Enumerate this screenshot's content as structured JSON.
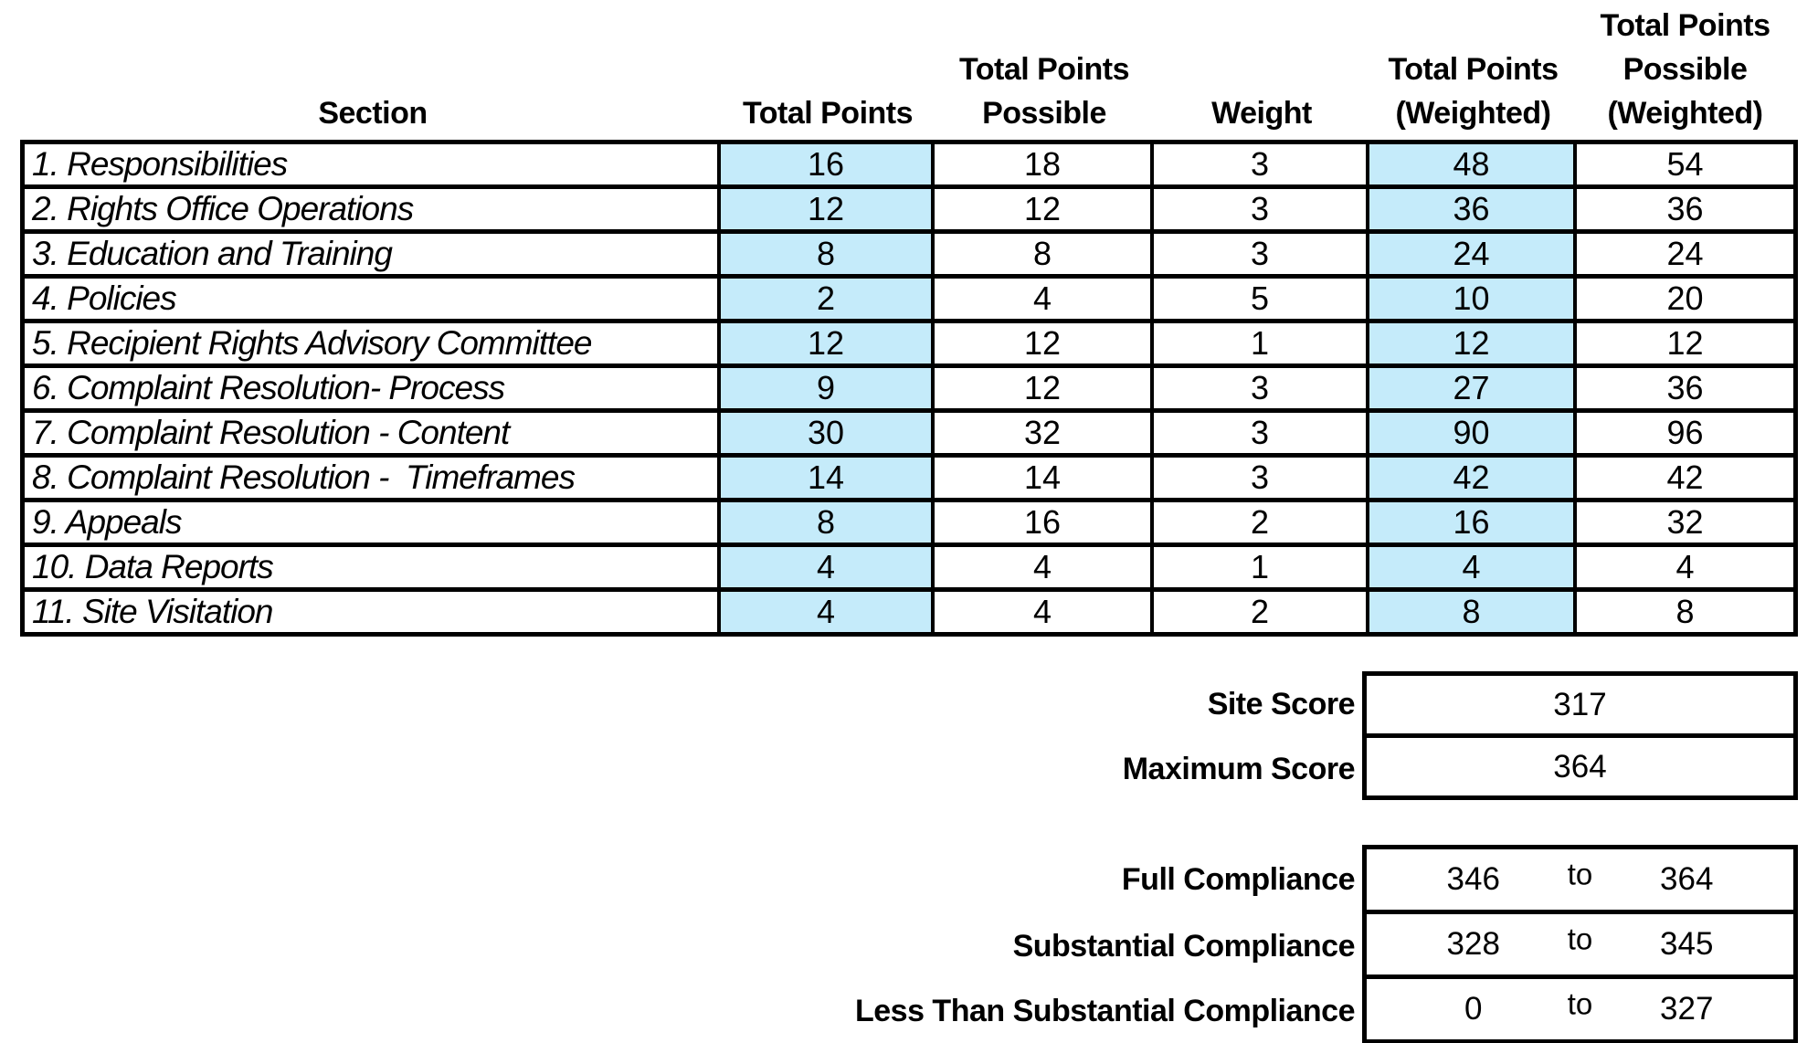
{
  "colors": {
    "highlight": "#C5EBFA",
    "border": "#000000",
    "background": "#FFFFFF",
    "text": "#000000"
  },
  "table": {
    "headers": [
      {
        "label": "Section"
      },
      {
        "label": "Total Points"
      },
      {
        "label": "Total Points\nPossible"
      },
      {
        "label": "Weight"
      },
      {
        "label": "Total Points\n(Weighted)"
      },
      {
        "label": "Total Points\nPossible\n(Weighted)"
      }
    ],
    "rows": [
      {
        "section": "1. Responsibilities",
        "total_points": "16",
        "possible": "18",
        "weight": "3",
        "weighted": "48",
        "weighted_possible": "54"
      },
      {
        "section": "2. Rights Office Operations",
        "total_points": "12",
        "possible": "12",
        "weight": "3",
        "weighted": "36",
        "weighted_possible": "36"
      },
      {
        "section": "3. Education and Training",
        "total_points": "8",
        "possible": "8",
        "weight": "3",
        "weighted": "24",
        "weighted_possible": "24"
      },
      {
        "section": "4. Policies",
        "total_points": "2",
        "possible": "4",
        "weight": "5",
        "weighted": "10",
        "weighted_possible": "20"
      },
      {
        "section": "5. Recipient Rights Advisory Committee",
        "total_points": "12",
        "possible": "12",
        "weight": "1",
        "weighted": "12",
        "weighted_possible": "12"
      },
      {
        "section": "6. Complaint Resolution- Process",
        "total_points": "9",
        "possible": "12",
        "weight": "3",
        "weighted": "27",
        "weighted_possible": "36"
      },
      {
        "section": "7. Complaint Resolution - Content",
        "total_points": "30",
        "possible": "32",
        "weight": "3",
        "weighted": "90",
        "weighted_possible": "96"
      },
      {
        "section": "8. Complaint Resolution -  Timeframes",
        "total_points": "14",
        "possible": "14",
        "weight": "3",
        "weighted": "42",
        "weighted_possible": "42"
      },
      {
        "section": "9. Appeals",
        "total_points": "8",
        "possible": "16",
        "weight": "2",
        "weighted": "16",
        "weighted_possible": "32"
      },
      {
        "section": "10. Data Reports",
        "total_points": "4",
        "possible": "4",
        "weight": "1",
        "weighted": "4",
        "weighted_possible": "4"
      },
      {
        "section": "11. Site Visitation",
        "total_points": "4",
        "possible": "4",
        "weight": "2",
        "weighted": "8",
        "weighted_possible": "8"
      }
    ]
  },
  "summary": {
    "rows": [
      {
        "label": "Site Score",
        "value": "317"
      },
      {
        "label": "Maximum Score",
        "value": "364"
      }
    ]
  },
  "compliance": {
    "rows": [
      {
        "label": "Full Compliance",
        "from": "346",
        "word": "to",
        "to": "364"
      },
      {
        "label": "Substantial Compliance",
        "from": "328",
        "word": "to",
        "to": "345"
      },
      {
        "label": "Less Than Substantial Compliance",
        "from": "0",
        "word": "to",
        "to": "327"
      }
    ]
  }
}
